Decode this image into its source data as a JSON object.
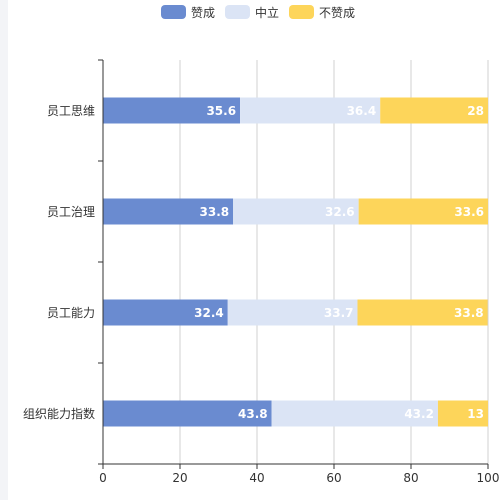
{
  "chart_data": {
    "type": "bar",
    "orientation": "horizontal",
    "stacked": true,
    "categories": [
      "员工思维",
      "员工治理",
      "员工能力",
      "组织能力指数"
    ],
    "series": [
      {
        "name": "赞成",
        "color": "#6a8bd0",
        "values": [
          35.6,
          33.8,
          32.4,
          43.8
        ]
      },
      {
        "name": "中立",
        "color": "#dbe4f5",
        "values": [
          36.4,
          32.6,
          33.7,
          43.2
        ]
      },
      {
        "name": "不赞成",
        "color": "#fdd55a",
        "values": [
          28,
          33.6,
          33.8,
          13
        ]
      }
    ],
    "x_ticks": [
      "0",
      "20",
      "40",
      "60",
      "80",
      "100"
    ],
    "xlim": [
      0,
      100
    ],
    "grid": "vertical",
    "legend": "top-center"
  }
}
